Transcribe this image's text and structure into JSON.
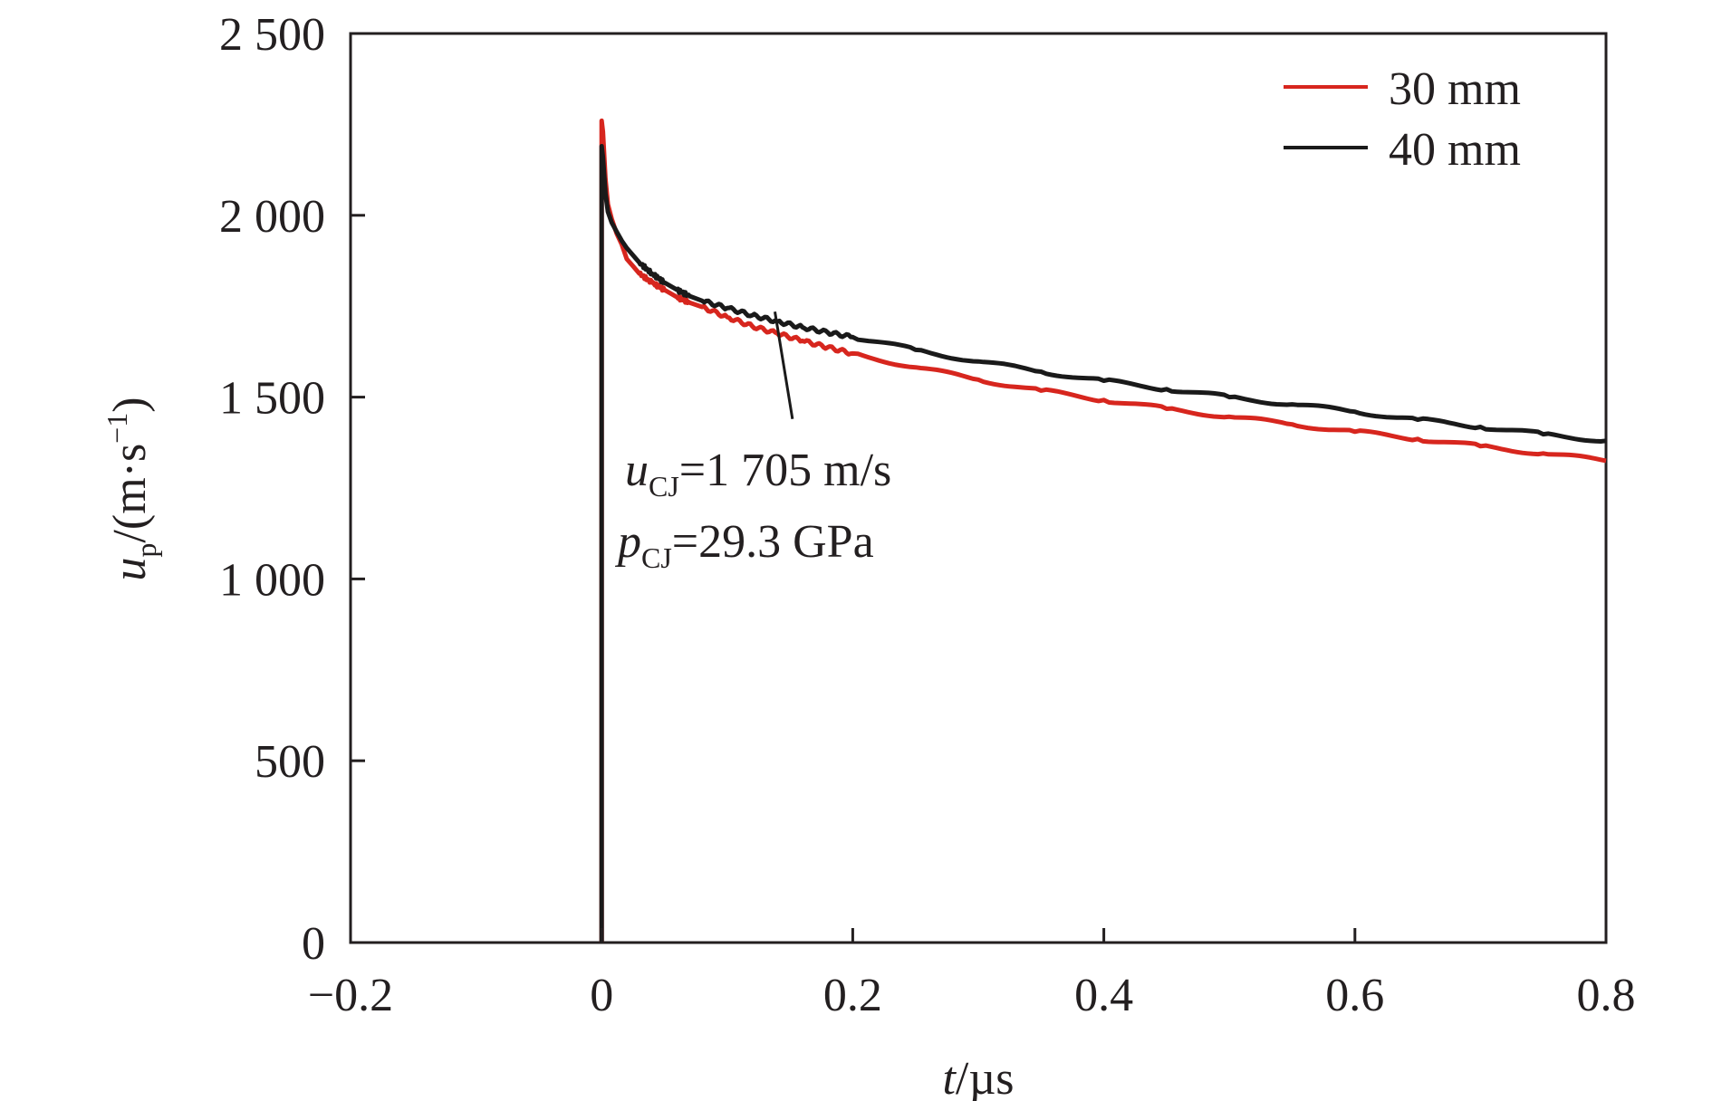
{
  "chart_data": {
    "type": "line",
    "xlabel": {
      "var": "t",
      "unit": "/µs"
    },
    "ylabel": {
      "var": "u",
      "sub": "p",
      "unit_pre": "/(m·s",
      "unit_sup": "−1",
      "unit_post": ")"
    },
    "xlim": [
      -0.2,
      0.8
    ],
    "ylim": [
      0,
      2500
    ],
    "xticks": [
      {
        "value": -0.2,
        "label": "−0.2"
      },
      {
        "value": 0,
        "label": "0"
      },
      {
        "value": 0.2,
        "label": "0.2"
      },
      {
        "value": 0.4,
        "label": "0.4"
      },
      {
        "value": 0.6,
        "label": "0.6"
      },
      {
        "value": 0.8,
        "label": "0.8"
      }
    ],
    "yticks": [
      {
        "value": 0,
        "label": "0"
      },
      {
        "value": 500,
        "label": "500"
      },
      {
        "value": 1000,
        "label": "1 000"
      },
      {
        "value": 1500,
        "label": "1 500"
      },
      {
        "value": 2000,
        "label": "2 000"
      },
      {
        "value": 2500,
        "label": "2 500"
      }
    ],
    "legend": {
      "position": "top-right",
      "entries": [
        {
          "name": "30 mm",
          "color": "#d7261e"
        },
        {
          "name": "40 mm",
          "color": "#1a1a1a"
        }
      ]
    },
    "series": [
      {
        "name": "30 mm",
        "color": "#d7261e",
        "x": [
          0,
          0,
          0.001,
          0.003,
          0.005,
          0.008,
          0.012,
          0.016,
          0.02,
          0.025,
          0.03,
          0.04,
          0.05,
          0.06,
          0.07,
          0.08,
          0.1,
          0.12,
          0.14,
          0.16,
          0.18,
          0.2,
          0.25,
          0.3,
          0.35,
          0.4,
          0.45,
          0.5,
          0.55,
          0.6,
          0.65,
          0.7,
          0.75,
          0.8
        ],
        "y": [
          0,
          2260,
          2230,
          2100,
          2030,
          1990,
          1950,
          1920,
          1880,
          1860,
          1840,
          1815,
          1795,
          1775,
          1760,
          1748,
          1720,
          1695,
          1675,
          1655,
          1637,
          1620,
          1582,
          1548,
          1518,
          1492,
          1468,
          1446,
          1425,
          1405,
          1385,
          1365,
          1345,
          1325
        ]
      },
      {
        "name": "40 mm",
        "color": "#1a1a1a",
        "x": [
          0,
          0,
          0.001,
          0.003,
          0.005,
          0.008,
          0.012,
          0.016,
          0.02,
          0.025,
          0.03,
          0.04,
          0.05,
          0.06,
          0.07,
          0.08,
          0.1,
          0.12,
          0.14,
          0.16,
          0.18,
          0.2,
          0.25,
          0.3,
          0.35,
          0.4,
          0.45,
          0.5,
          0.55,
          0.6,
          0.65,
          0.7,
          0.75,
          0.8
        ],
        "y": [
          0,
          2190,
          2160,
          2060,
          2010,
          1980,
          1955,
          1930,
          1910,
          1890,
          1870,
          1840,
          1815,
          1795,
          1778,
          1765,
          1745,
          1725,
          1708,
          1692,
          1678,
          1665,
          1630,
          1598,
          1570,
          1545,
          1522,
          1500,
          1480,
          1460,
          1438,
          1418,
          1398,
          1380
        ]
      }
    ],
    "annotation": {
      "line1": {
        "var": "u",
        "sub": "CJ",
        "text": "=1 705 m/s"
      },
      "line2": {
        "var": "p",
        "sub": "CJ",
        "text": "=29.3 GPa"
      },
      "pointer_from": {
        "x": 0.152,
        "y": 1440
      },
      "pointer_to": {
        "x": 0.138,
        "y": 1735
      }
    }
  }
}
